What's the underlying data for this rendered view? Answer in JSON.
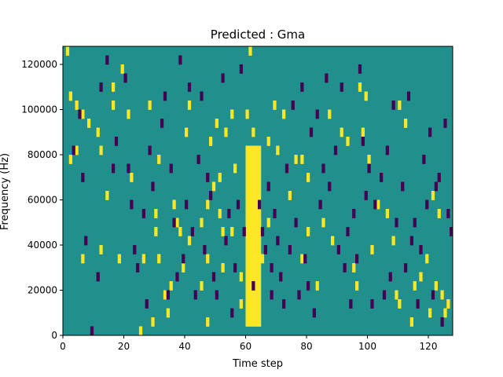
{
  "chart_data": {
    "type": "heatmap",
    "title": "Predicted : Gma",
    "xlabel": "Time step",
    "ylabel": "Frequency (Hz)",
    "xlim": [
      0,
      128
    ],
    "ylim": [
      0,
      128000
    ],
    "grid": false,
    "x_ticks": [
      0,
      20,
      40,
      60,
      80,
      100,
      120
    ],
    "x_tick_labels": [
      "0",
      "20",
      "40",
      "60",
      "80",
      "100",
      "120"
    ],
    "y_ticks": [
      0,
      20000,
      40000,
      60000,
      80000,
      100000,
      120000
    ],
    "y_tick_labels": [
      "0",
      "20000",
      "40000",
      "60000",
      "80000",
      "100000",
      "120000"
    ],
    "frequency_bins": 32,
    "bin_height_hz": 4000,
    "value_colors": {
      "low": "#440154",
      "mid": "#21908d",
      "high": "#fde725"
    },
    "background_value": "mid",
    "high_band": {
      "t_start": 60,
      "t_end": 64,
      "f_start_bin": 1,
      "f_end_bin": 20
    },
    "high_cells": [
      [
        1,
        31
      ],
      [
        2,
        26
      ],
      [
        2,
        19
      ],
      [
        4,
        25
      ],
      [
        4,
        20
      ],
      [
        6,
        24
      ],
      [
        6,
        8
      ],
      [
        8,
        23
      ],
      [
        11,
        22
      ],
      [
        12,
        20
      ],
      [
        12,
        9
      ],
      [
        14,
        15
      ],
      [
        16,
        25
      ],
      [
        16,
        27
      ],
      [
        18,
        8
      ],
      [
        19,
        29
      ],
      [
        21,
        24
      ],
      [
        22,
        17
      ],
      [
        25,
        0
      ],
      [
        26,
        8
      ],
      [
        28,
        25
      ],
      [
        29,
        1
      ],
      [
        30,
        11
      ],
      [
        30,
        13
      ],
      [
        31,
        19
      ],
      [
        31,
        8
      ],
      [
        33,
        4
      ],
      [
        34,
        2
      ],
      [
        35,
        5
      ],
      [
        36,
        14
      ],
      [
        37,
        12
      ],
      [
        38,
        11
      ],
      [
        39,
        7
      ],
      [
        40,
        22
      ],
      [
        41,
        25
      ],
      [
        41,
        10
      ],
      [
        45,
        5
      ],
      [
        45,
        12
      ],
      [
        47,
        1
      ],
      [
        47,
        14
      ],
      [
        47,
        8
      ],
      [
        48,
        21
      ],
      [
        49,
        16
      ],
      [
        50,
        23
      ],
      [
        51,
        13
      ],
      [
        51,
        17
      ],
      [
        52,
        11
      ],
      [
        52,
        7
      ],
      [
        53,
        22
      ],
      [
        55,
        24
      ],
      [
        55,
        11
      ],
      [
        56,
        18
      ],
      [
        58,
        3
      ],
      [
        58,
        6
      ],
      [
        60,
        24
      ],
      [
        61,
        31
      ],
      [
        62,
        22
      ],
      [
        64,
        12
      ],
      [
        65,
        8
      ],
      [
        67,
        12
      ],
      [
        67,
        21
      ],
      [
        69,
        25
      ],
      [
        70,
        20
      ],
      [
        72,
        24
      ],
      [
        74,
        15
      ],
      [
        76,
        19
      ],
      [
        78,
        8
      ],
      [
        78,
        19
      ],
      [
        80,
        17
      ],
      [
        80,
        11
      ],
      [
        83,
        5
      ],
      [
        85,
        12
      ],
      [
        87,
        24
      ],
      [
        88,
        10
      ],
      [
        91,
        22
      ],
      [
        93,
        21
      ],
      [
        95,
        7
      ],
      [
        96,
        5
      ],
      [
        97,
        27
      ],
      [
        98,
        22
      ],
      [
        99,
        26
      ],
      [
        100,
        19
      ],
      [
        101,
        9
      ],
      [
        103,
        14
      ],
      [
        106,
        13
      ],
      [
        108,
        10
      ],
      [
        109,
        4
      ],
      [
        110,
        3
      ],
      [
        110,
        25
      ],
      [
        112,
        23
      ],
      [
        114,
        1
      ],
      [
        115,
        5
      ],
      [
        117,
        6
      ],
      [
        119,
        8
      ],
      [
        120,
        2
      ],
      [
        121,
        15
      ],
      [
        122,
        5
      ],
      [
        123,
        13
      ],
      [
        124,
        4
      ],
      [
        125,
        2
      ],
      [
        126,
        3
      ]
    ],
    "low_cells": [
      [
        3,
        20
      ],
      [
        5,
        24
      ],
      [
        6,
        17
      ],
      [
        7,
        10
      ],
      [
        9,
        0
      ],
      [
        11,
        6
      ],
      [
        12,
        27
      ],
      [
        14,
        30
      ],
      [
        16,
        18
      ],
      [
        17,
        21
      ],
      [
        20,
        28
      ],
      [
        21,
        18
      ],
      [
        22,
        14
      ],
      [
        23,
        9
      ],
      [
        24,
        7
      ],
      [
        26,
        13
      ],
      [
        27,
        3
      ],
      [
        28,
        20
      ],
      [
        29,
        16
      ],
      [
        32,
        23
      ],
      [
        33,
        26
      ],
      [
        34,
        4
      ],
      [
        35,
        18
      ],
      [
        36,
        12
      ],
      [
        37,
        6
      ],
      [
        38,
        30
      ],
      [
        39,
        8
      ],
      [
        40,
        14
      ],
      [
        41,
        27
      ],
      [
        42,
        11
      ],
      [
        43,
        4
      ],
      [
        44,
        19
      ],
      [
        45,
        26
      ],
      [
        46,
        9
      ],
      [
        47,
        17
      ],
      [
        48,
        15
      ],
      [
        49,
        6
      ],
      [
        50,
        4
      ],
      [
        52,
        28
      ],
      [
        53,
        10
      ],
      [
        54,
        13
      ],
      [
        55,
        2
      ],
      [
        56,
        7
      ],
      [
        57,
        14
      ],
      [
        58,
        29
      ],
      [
        59,
        11
      ],
      [
        62,
        5
      ],
      [
        64,
        14
      ],
      [
        65,
        11
      ],
      [
        66,
        9
      ],
      [
        67,
        16
      ],
      [
        68,
        4
      ],
      [
        68,
        7
      ],
      [
        69,
        13
      ],
      [
        70,
        10
      ],
      [
        71,
        6
      ],
      [
        72,
        3
      ],
      [
        73,
        18
      ],
      [
        74,
        9
      ],
      [
        75,
        25
      ],
      [
        76,
        12
      ],
      [
        77,
        4
      ],
      [
        78,
        27
      ],
      [
        79,
        8
      ],
      [
        80,
        5
      ],
      [
        81,
        22
      ],
      [
        82,
        2
      ],
      [
        83,
        24
      ],
      [
        84,
        14
      ],
      [
        85,
        18
      ],
      [
        86,
        28
      ],
      [
        87,
        16
      ],
      [
        89,
        20
      ],
      [
        90,
        9
      ],
      [
        91,
        27
      ],
      [
        92,
        7
      ],
      [
        93,
        11
      ],
      [
        94,
        3
      ],
      [
        95,
        13
      ],
      [
        96,
        8
      ],
      [
        97,
        29
      ],
      [
        98,
        21
      ],
      [
        99,
        15
      ],
      [
        100,
        18
      ],
      [
        101,
        3
      ],
      [
        102,
        14
      ],
      [
        104,
        17
      ],
      [
        105,
        4
      ],
      [
        106,
        20
      ],
      [
        107,
        6
      ],
      [
        108,
        25
      ],
      [
        109,
        12
      ],
      [
        111,
        16
      ],
      [
        112,
        7
      ],
      [
        113,
        26
      ],
      [
        114,
        10
      ],
      [
        115,
        12
      ],
      [
        116,
        3
      ],
      [
        117,
        9
      ],
      [
        118,
        19
      ],
      [
        119,
        14
      ],
      [
        120,
        22
      ],
      [
        121,
        4
      ],
      [
        122,
        16
      ],
      [
        123,
        17
      ],
      [
        124,
        1
      ],
      [
        125,
        23
      ],
      [
        126,
        13
      ],
      [
        127,
        11
      ]
    ]
  }
}
